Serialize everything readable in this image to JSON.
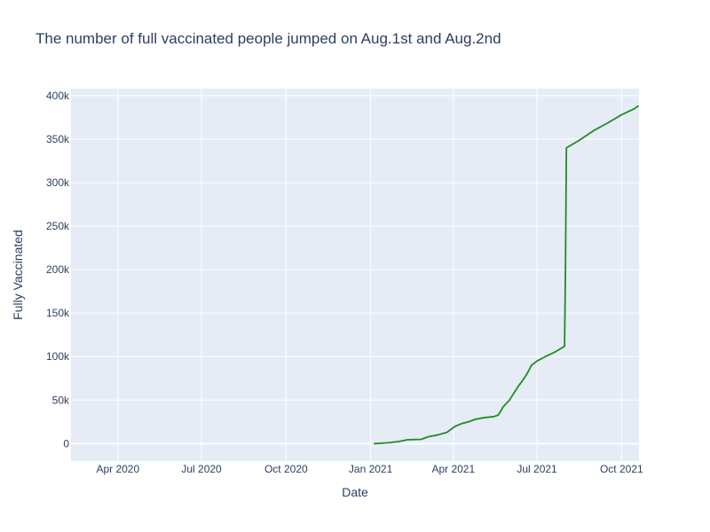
{
  "chart_data": {
    "type": "line",
    "title": "The number of full vaccinated people jumped on Aug.1st and Aug.2nd",
    "xlabel": "Date",
    "ylabel": "Fully Vaccinated",
    "xlim": [
      "2020-02-10",
      "2021-10-20"
    ],
    "ylim": [
      -20000,
      408000
    ],
    "x_ticks": [
      {
        "date": "2020-04-01",
        "label": "Apr 2020"
      },
      {
        "date": "2020-07-01",
        "label": "Jul 2020"
      },
      {
        "date": "2020-10-01",
        "label": "Oct 2020"
      },
      {
        "date": "2021-01-01",
        "label": "Jan 2021"
      },
      {
        "date": "2021-04-01",
        "label": "Apr 2021"
      },
      {
        "date": "2021-07-01",
        "label": "Jul 2021"
      },
      {
        "date": "2021-10-01",
        "label": "Oct 2021"
      }
    ],
    "y_ticks": [
      {
        "value": 0,
        "label": "0"
      },
      {
        "value": 50000,
        "label": "50k"
      },
      {
        "value": 100000,
        "label": "100k"
      },
      {
        "value": 150000,
        "label": "150k"
      },
      {
        "value": 200000,
        "label": "200k"
      },
      {
        "value": 250000,
        "label": "250k"
      },
      {
        "value": 300000,
        "label": "300k"
      },
      {
        "value": 350000,
        "label": "350k"
      },
      {
        "value": 400000,
        "label": "400k"
      }
    ],
    "grid": true,
    "series": [
      {
        "color": "#228b22",
        "x": [
          "2021-01-05",
          "2021-01-20",
          "2021-02-01",
          "2021-02-10",
          "2021-02-25",
          "2021-03-05",
          "2021-03-15",
          "2021-03-25",
          "2021-04-03",
          "2021-04-10",
          "2021-04-17",
          "2021-04-25",
          "2021-05-05",
          "2021-05-15",
          "2021-05-20",
          "2021-05-25",
          "2021-06-01",
          "2021-06-10",
          "2021-06-15",
          "2021-06-20",
          "2021-06-25",
          "2021-07-01",
          "2021-07-10",
          "2021-07-20",
          "2021-07-31",
          "2021-08-01",
          "2021-08-02",
          "2021-08-15",
          "2021-09-01",
          "2021-09-15",
          "2021-10-01",
          "2021-10-15",
          "2021-10-19"
        ],
        "y": [
          0,
          1000,
          2500,
          4500,
          5000,
          8000,
          10000,
          13000,
          20000,
          23000,
          25000,
          28000,
          30000,
          31000,
          33000,
          42000,
          50000,
          65000,
          72000,
          80000,
          90000,
          95000,
          100000,
          105000,
          112000,
          200000,
          340000,
          348000,
          360000,
          368000,
          378000,
          385000,
          388000
        ]
      }
    ]
  }
}
